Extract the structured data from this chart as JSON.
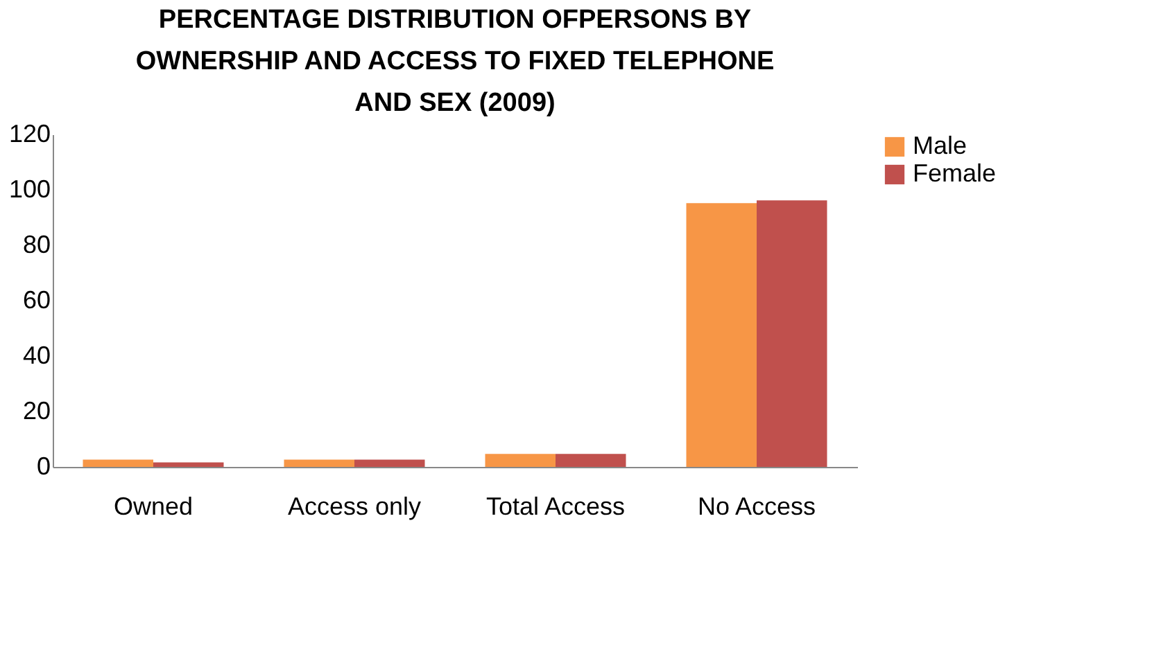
{
  "chart_data": {
    "type": "bar",
    "title": "PERCENTAGE DISTRIBUTION OFPERSONS BY OWNERSHIP AND ACCESS  TO FIXED TELEPHONE AND SEX (2009)",
    "categories": [
      "Owned",
      "Access only",
      "Total Access",
      "No Access"
    ],
    "series": [
      {
        "name": "Male",
        "color": "#f79646",
        "values": [
          2.6,
          2.6,
          4.7,
          95.2
        ]
      },
      {
        "name": "Female",
        "color": "#c0504d",
        "values": [
          1.6,
          2.6,
          4.7,
          96.2
        ]
      }
    ],
    "ylim": [
      0,
      120
    ],
    "yticks": [
      0,
      20,
      40,
      60,
      80,
      100,
      120
    ],
    "grid": false,
    "legend": "right"
  }
}
